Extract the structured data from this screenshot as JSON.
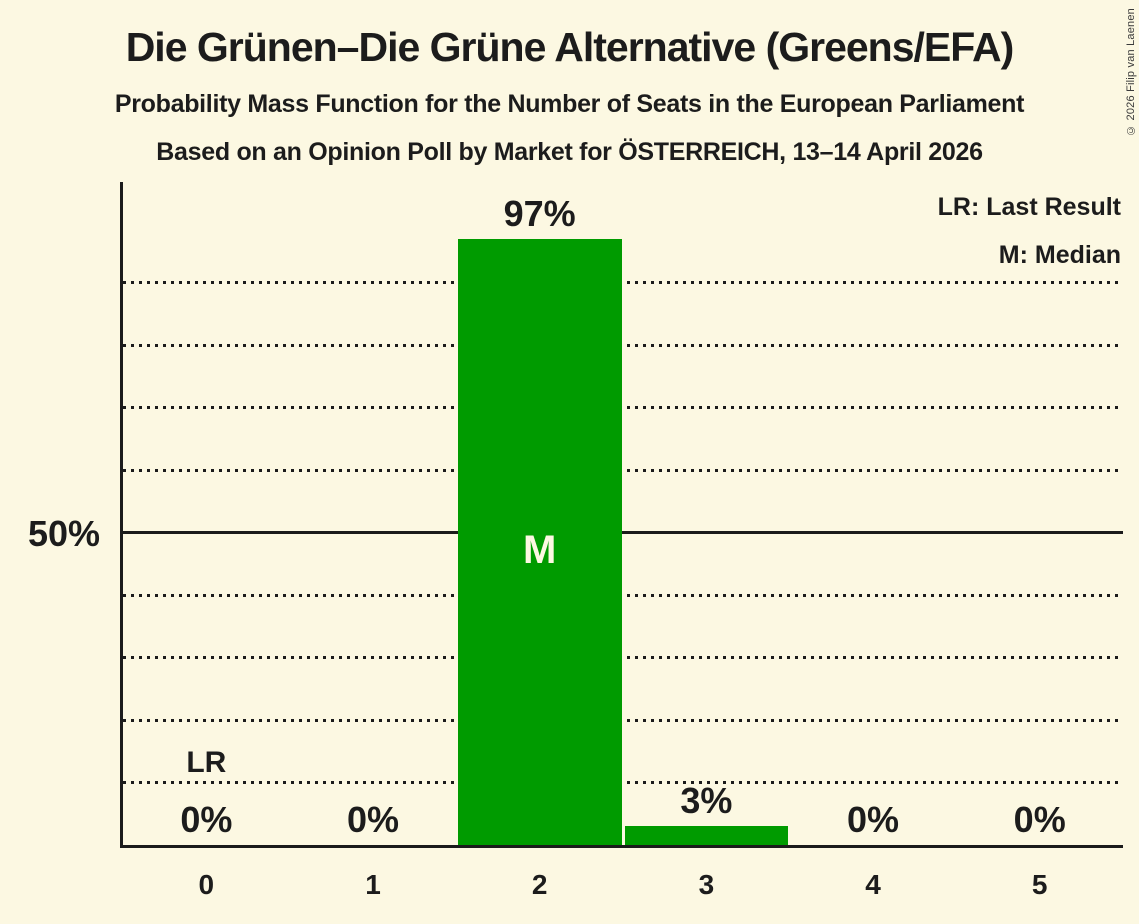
{
  "header": {
    "title": "Die Grünen–Die Grüne Alternative (Greens/EFA)",
    "subtitle1": "Probability Mass Function for the Number of Seats in the European Parliament",
    "subtitle2": "Based on an Opinion Poll by Market for ÖSTERREICH, 13–14 April 2026"
  },
  "legend": {
    "lr": "LR: Last Result",
    "m": "M: Median"
  },
  "y_axis": {
    "tick_label": "50%",
    "tick_value": 50
  },
  "copyright": "© 2026 Filip van Laenen",
  "chart_data": {
    "type": "bar",
    "title": "Die Grünen–Die Grüne Alternative (Greens/EFA)",
    "xlabel": "Number of Seats",
    "ylabel": "Probability",
    "categories": [
      "0",
      "1",
      "2",
      "3",
      "4",
      "5"
    ],
    "values": [
      0,
      0,
      97,
      3,
      0,
      0
    ],
    "bar_labels": [
      "0%",
      "0%",
      "97%",
      "3%",
      "0%",
      "0%"
    ],
    "median_seats": "2",
    "median_marker": "M",
    "last_result_seats": "0",
    "lr_marker": "LR",
    "ylim": [
      0,
      106
    ],
    "gridlines_dotted": [
      10,
      20,
      30,
      40,
      60,
      70,
      80,
      90
    ],
    "gridline_solid": 50,
    "legend_position": "top-right",
    "bar_color": "#009B00",
    "background_color": "#FCF8E2",
    "text_color": "#1c1c1c",
    "median_label_color": "#FCF8E2"
  }
}
